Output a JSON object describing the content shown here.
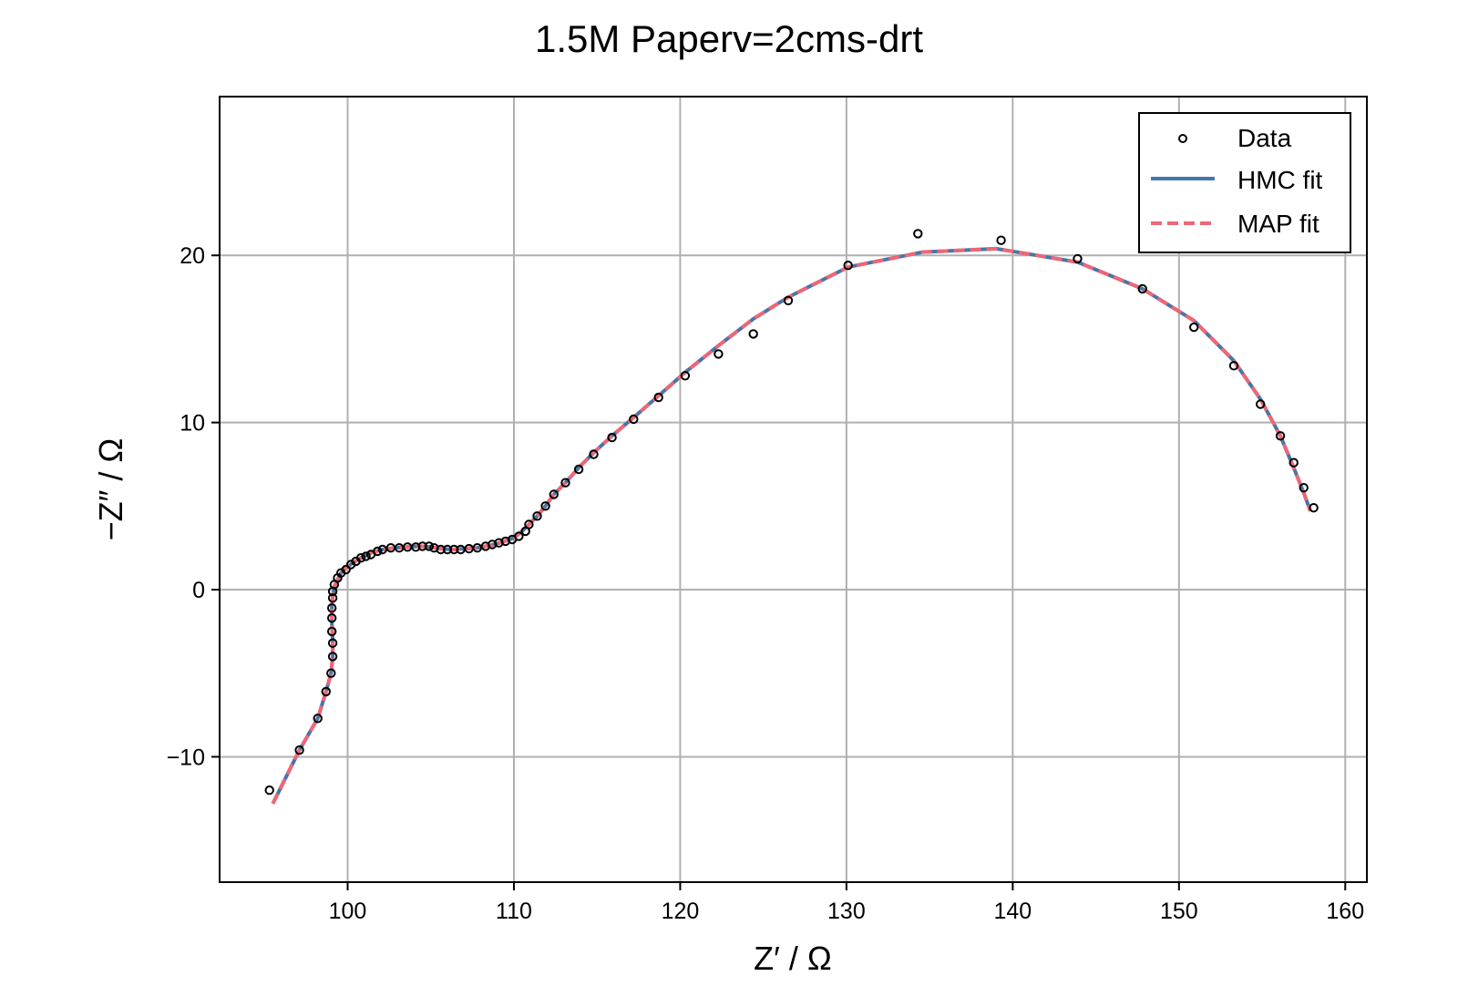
{
  "chart_data": {
    "type": "scatter",
    "title": "1.5M Paperv=2cms-drt",
    "xlabel": "Z′ / Ω",
    "ylabel": "−Z″ / Ω",
    "xlim": [
      92.3,
      161.3
    ],
    "ylim": [
      -17.5,
      29.5
    ],
    "xticks": [
      100,
      110,
      120,
      130,
      140,
      150,
      160
    ],
    "yticks": [
      -10,
      0,
      10,
      20
    ],
    "grid": true,
    "legend_position": "top-right",
    "colors": {
      "data_marker_edge": "#000000",
      "hmc_fit": "#4477aa",
      "map_fit": "#ee6677",
      "grid": "#b0b0b0"
    },
    "series": [
      {
        "name": "Data",
        "kind": "markers",
        "x": [
          95.3,
          97.1,
          98.2,
          98.7,
          99.0,
          99.1,
          99.1,
          99.05,
          99.05,
          99.05,
          99.1,
          99.1,
          99.2,
          99.4,
          99.6,
          99.9,
          100.2,
          100.5,
          100.8,
          101.1,
          101.4,
          101.8,
          102.1,
          102.6,
          103.1,
          103.6,
          104.1,
          104.5,
          104.9,
          105.2,
          105.6,
          106.0,
          106.4,
          106.8,
          107.3,
          107.8,
          108.3,
          108.7,
          109.1,
          109.5,
          109.9,
          110.3,
          110.7,
          110.9,
          111.4,
          111.9,
          112.4,
          113.1,
          113.9,
          114.8,
          115.9,
          117.2,
          118.7,
          120.3,
          122.3,
          124.4,
          126.5,
          130.1,
          134.3,
          139.3,
          143.9,
          147.8,
          150.9,
          153.3,
          154.9,
          156.1,
          156.9,
          157.5,
          158.1
        ],
        "y": [
          -12.0,
          -9.6,
          -7.7,
          -6.1,
          -5.0,
          -4.0,
          -3.2,
          -2.5,
          -1.7,
          -1.1,
          -0.5,
          -0.1,
          0.3,
          0.7,
          1.0,
          1.2,
          1.5,
          1.7,
          1.9,
          2.0,
          2.1,
          2.3,
          2.4,
          2.5,
          2.5,
          2.55,
          2.55,
          2.6,
          2.6,
          2.5,
          2.4,
          2.4,
          2.4,
          2.4,
          2.45,
          2.5,
          2.6,
          2.7,
          2.8,
          2.9,
          3.0,
          3.2,
          3.5,
          3.9,
          4.4,
          5.0,
          5.7,
          6.4,
          7.2,
          8.1,
          9.1,
          10.2,
          11.5,
          12.8,
          14.1,
          15.3,
          17.3,
          19.4,
          21.3,
          20.9,
          19.8,
          18.0,
          15.7,
          13.4,
          11.1,
          9.2,
          7.6,
          6.1,
          4.9
        ]
      },
      {
        "name": "HMC fit",
        "kind": "line",
        "x": [
          95.5,
          97.1,
          98.2,
          98.7,
          99.0,
          99.1,
          99.1,
          99.05,
          99.05,
          99.1,
          99.2,
          99.4,
          99.6,
          99.9,
          100.3,
          100.8,
          101.4,
          102.1,
          102.8,
          103.6,
          104.4,
          105.0,
          105.6,
          106.3,
          107.0,
          107.8,
          108.6,
          109.3,
          110.0,
          110.5,
          110.9,
          111.4,
          111.9,
          112.4,
          113.1,
          113.9,
          114.8,
          115.9,
          117.2,
          118.7,
          120.3,
          122.3,
          124.4,
          126.5,
          130.1,
          134.6,
          139.0,
          143.9,
          147.8,
          150.9,
          153.3,
          154.9,
          156.1,
          156.9,
          157.5,
          157.9
        ],
        "y": [
          -12.8,
          -9.6,
          -7.7,
          -6.1,
          -5.0,
          -4.0,
          -3.0,
          -2.0,
          -1.0,
          -0.4,
          0.2,
          0.6,
          1.0,
          1.3,
          1.6,
          1.9,
          2.2,
          2.4,
          2.5,
          2.55,
          2.6,
          2.55,
          2.45,
          2.4,
          2.45,
          2.5,
          2.65,
          2.85,
          3.1,
          3.5,
          3.9,
          4.4,
          5.0,
          5.7,
          6.4,
          7.3,
          8.2,
          9.2,
          10.3,
          11.6,
          13.0,
          14.6,
          16.2,
          17.5,
          19.3,
          20.2,
          20.4,
          19.6,
          18.0,
          16.1,
          13.7,
          11.4,
          9.2,
          7.3,
          5.8,
          4.7
        ]
      },
      {
        "name": "MAP fit",
        "kind": "dashed-line",
        "x": [
          95.5,
          97.1,
          98.2,
          98.7,
          99.0,
          99.1,
          99.1,
          99.05,
          99.05,
          99.1,
          99.2,
          99.4,
          99.6,
          99.9,
          100.3,
          100.8,
          101.4,
          102.1,
          102.8,
          103.6,
          104.4,
          105.0,
          105.6,
          106.3,
          107.0,
          107.8,
          108.6,
          109.3,
          110.0,
          110.5,
          110.9,
          111.4,
          111.9,
          112.4,
          113.1,
          113.9,
          114.8,
          115.9,
          117.2,
          118.7,
          120.3,
          122.3,
          124.4,
          126.5,
          130.1,
          134.6,
          139.0,
          143.9,
          147.8,
          150.9,
          153.3,
          154.9,
          156.1,
          156.9,
          157.5,
          157.9
        ],
        "y": [
          -12.8,
          -9.6,
          -7.7,
          -6.1,
          -5.0,
          -4.0,
          -3.0,
          -2.0,
          -1.0,
          -0.4,
          0.2,
          0.6,
          1.0,
          1.3,
          1.6,
          1.9,
          2.2,
          2.4,
          2.5,
          2.55,
          2.6,
          2.55,
          2.45,
          2.4,
          2.45,
          2.5,
          2.65,
          2.85,
          3.1,
          3.5,
          3.9,
          4.4,
          5.0,
          5.7,
          6.4,
          7.3,
          8.2,
          9.2,
          10.3,
          11.6,
          13.0,
          14.6,
          16.2,
          17.5,
          19.3,
          20.2,
          20.4,
          19.6,
          18.0,
          16.1,
          13.7,
          11.4,
          9.2,
          7.3,
          5.8,
          4.7
        ]
      }
    ]
  }
}
